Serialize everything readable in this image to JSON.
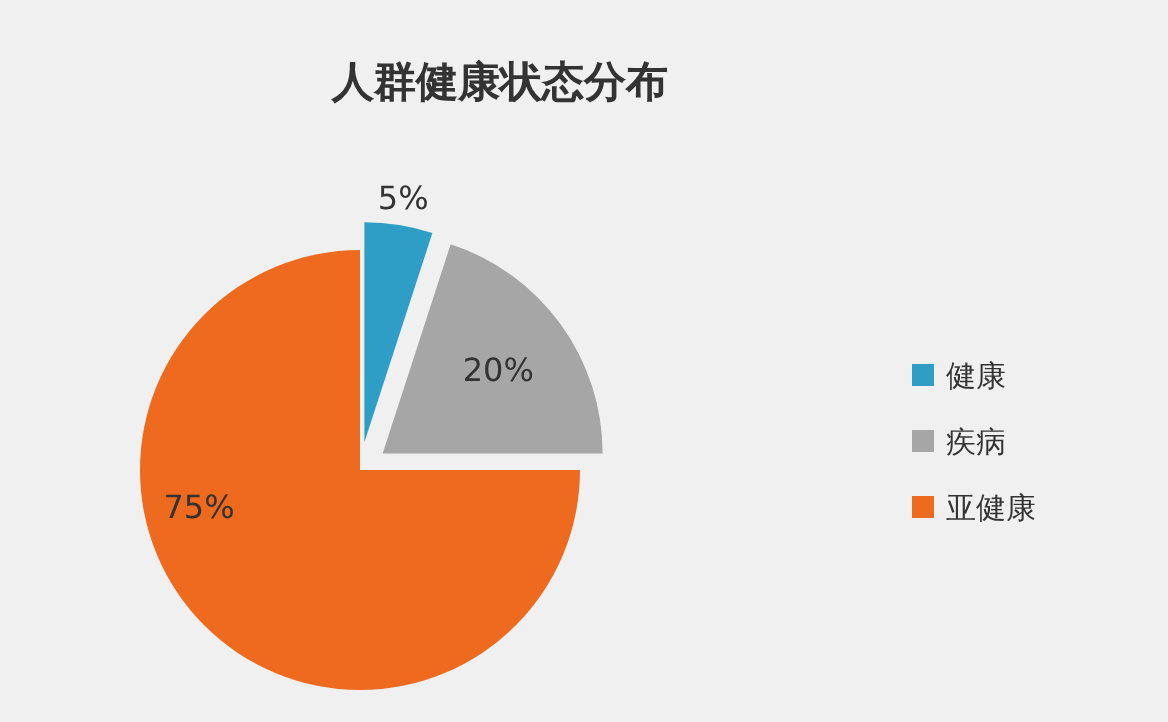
{
  "chart_data": {
    "type": "pie",
    "title": "人群健康状态分布",
    "categories": [
      "健康",
      "疾病",
      "亚健康"
    ],
    "values": [
      5,
      20,
      75
    ],
    "colors": [
      "#2e9ec6",
      "#a6a6a6",
      "#ed6a1e"
    ],
    "value_labels": [
      "5%",
      "20%",
      "75%"
    ],
    "legend": "right"
  }
}
